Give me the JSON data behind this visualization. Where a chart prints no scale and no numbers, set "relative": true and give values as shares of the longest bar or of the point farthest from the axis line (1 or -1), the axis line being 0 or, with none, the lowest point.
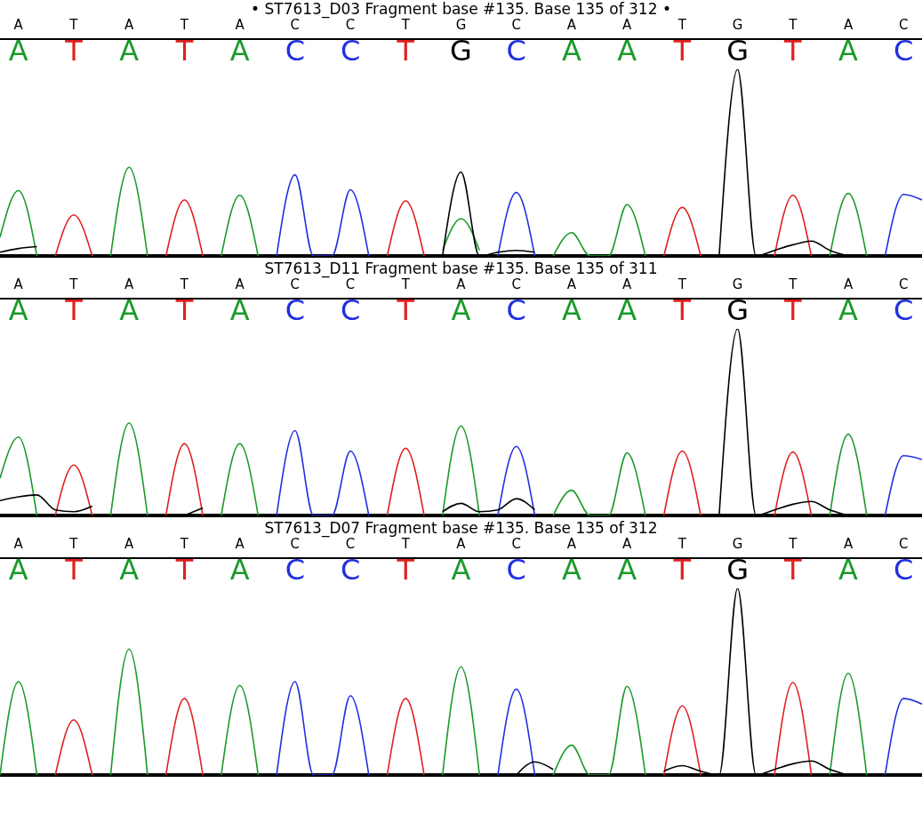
{
  "chart_data": [
    {
      "type": "line",
      "title": "• ST7613_D03 Fragment base #135. Base 135 of 312 •",
      "relative": true,
      "categories": [
        null,
        "A",
        null,
        null,
        "T",
        null,
        null,
        "A",
        null,
        null,
        "T",
        null,
        null,
        "A",
        null,
        null,
        "C",
        null,
        null,
        "C",
        null,
        null,
        "T",
        null,
        null,
        "G",
        null,
        null,
        "C",
        null,
        null,
        "A",
        null,
        null,
        "A",
        null,
        null,
        "T",
        null,
        null,
        "G",
        null,
        null,
        "T",
        null,
        null,
        "A",
        null,
        null,
        "C",
        null
      ],
      "series": [
        {
          "color": "#1a9a2a",
          "values": [
            0.1,
            0.35,
            0,
            null,
            null,
            null,
            0,
            0.475,
            0,
            null,
            null,
            null,
            0,
            0.325,
            0,
            null,
            null,
            null,
            null,
            null,
            null,
            null,
            null,
            null,
            0.03,
            0.2,
            0.03,
            null,
            null,
            null,
            0,
            0.125,
            0,
            0,
            0.275,
            0,
            null,
            null,
            null,
            null,
            null,
            null,
            null,
            null,
            null,
            0,
            0.335,
            0,
            null,
            null,
            null
          ]
        },
        {
          "color": "#e02020",
          "values": [
            null,
            null,
            null,
            0,
            0.22,
            0,
            null,
            null,
            null,
            0,
            0.3,
            0,
            null,
            null,
            null,
            null,
            null,
            null,
            null,
            null,
            null,
            0,
            0.295,
            0,
            null,
            null,
            null,
            null,
            null,
            null,
            null,
            null,
            null,
            null,
            null,
            null,
            0,
            0.26,
            0,
            null,
            null,
            null,
            0,
            0.325,
            0,
            null,
            null,
            null,
            null,
            null,
            null
          ]
        },
        {
          "color": "#2030e0",
          "values": [
            null,
            null,
            null,
            null,
            null,
            null,
            null,
            null,
            null,
            null,
            null,
            null,
            null,
            null,
            null,
            0,
            0.435,
            0,
            0,
            0.355,
            0,
            null,
            null,
            null,
            null,
            null,
            null,
            0,
            0.34,
            0,
            null,
            null,
            null,
            null,
            null,
            null,
            null,
            null,
            null,
            null,
            null,
            null,
            null,
            null,
            null,
            null,
            null,
            null,
            0,
            0.33,
            0.3
          ]
        },
        {
          "color": "#000000",
          "values": [
            0.02,
            0.04,
            0.05,
            null,
            null,
            null,
            null,
            null,
            null,
            null,
            null,
            null,
            null,
            null,
            null,
            null,
            null,
            null,
            null,
            null,
            null,
            null,
            null,
            null,
            0,
            0.45,
            0,
            0.02,
            0.03,
            0.02,
            null,
            null,
            null,
            null,
            null,
            null,
            null,
            null,
            null,
            0,
            1,
            0,
            0.03,
            0.06,
            0.08,
            0.03,
            0,
            null,
            null,
            null,
            null
          ]
        }
      ]
    },
    {
      "type": "line",
      "title": "ST7613_D11 Fragment base #135. Base 135 of 311",
      "relative": true,
      "categories": [
        null,
        "A",
        null,
        null,
        "T",
        null,
        null,
        "A",
        null,
        null,
        "T",
        null,
        null,
        "A",
        null,
        null,
        "C",
        null,
        null,
        "C",
        null,
        null,
        "T",
        null,
        null,
        "A",
        null,
        null,
        "C",
        null,
        null,
        "A",
        null,
        null,
        "A",
        null,
        null,
        "T",
        null,
        null,
        "G",
        null,
        null,
        "T",
        null,
        null,
        "A",
        null,
        null,
        "C",
        null
      ],
      "series": [
        {
          "color": "#1a9a2a",
          "values": [
            0.2,
            0.42,
            0,
            null,
            null,
            null,
            0,
            0.495,
            0,
            null,
            null,
            null,
            0,
            0.385,
            0,
            null,
            null,
            null,
            null,
            null,
            null,
            null,
            null,
            null,
            0,
            0.48,
            0,
            null,
            null,
            null,
            0,
            0.135,
            0,
            0,
            0.335,
            0,
            null,
            null,
            null,
            null,
            null,
            null,
            null,
            null,
            null,
            0,
            0.435,
            0,
            null,
            null,
            null
          ]
        },
        {
          "color": "#e02020",
          "values": [
            null,
            null,
            null,
            0,
            0.27,
            0,
            null,
            null,
            null,
            0,
            0.385,
            0,
            null,
            null,
            null,
            null,
            null,
            null,
            null,
            null,
            null,
            0,
            0.36,
            0,
            null,
            null,
            null,
            null,
            null,
            null,
            null,
            null,
            null,
            null,
            null,
            null,
            0,
            0.345,
            0,
            null,
            null,
            null,
            0,
            0.34,
            0,
            null,
            null,
            null,
            null,
            null,
            null
          ]
        },
        {
          "color": "#2030e0",
          "values": [
            null,
            null,
            null,
            null,
            null,
            null,
            null,
            null,
            null,
            null,
            null,
            null,
            null,
            null,
            null,
            0,
            0.455,
            0,
            0,
            0.345,
            0,
            null,
            null,
            null,
            null,
            null,
            null,
            0,
            0.37,
            0,
            null,
            null,
            null,
            null,
            null,
            null,
            null,
            null,
            null,
            null,
            null,
            null,
            null,
            null,
            null,
            null,
            null,
            null,
            0,
            0.32,
            0.3
          ]
        },
        {
          "color": "#000000",
          "values": [
            0.08,
            0.1,
            0.11,
            0.03,
            0.02,
            0.05,
            null,
            null,
            null,
            null,
            0,
            0.04,
            null,
            null,
            null,
            null,
            null,
            null,
            null,
            null,
            null,
            null,
            null,
            null,
            0.02,
            0.065,
            0.02,
            0.03,
            0.09,
            0.03,
            null,
            null,
            null,
            null,
            null,
            null,
            null,
            null,
            null,
            0,
            1,
            0,
            0.03,
            0.06,
            0.075,
            0.03,
            0,
            null,
            null,
            null,
            null
          ]
        }
      ]
    },
    {
      "type": "line",
      "title": "ST7613_D07 Fragment base #135. Base 135 of 312",
      "relative": true,
      "categories": [
        null,
        "A",
        null,
        null,
        "T",
        null,
        null,
        "A",
        null,
        null,
        "T",
        null,
        null,
        "A",
        null,
        null,
        "C",
        null,
        null,
        "C",
        null,
        null,
        "T",
        null,
        null,
        "A",
        null,
        null,
        "C",
        null,
        null,
        "A",
        null,
        null,
        "A",
        null,
        null,
        "T",
        null,
        null,
        "G",
        null,
        null,
        "T",
        null,
        null,
        "A",
        null,
        null,
        "C",
        null
      ],
      "series": [
        {
          "color": "#1a9a2a",
          "values": [
            0,
            0.5,
            0,
            null,
            null,
            null,
            0,
            0.675,
            0,
            null,
            null,
            null,
            0,
            0.48,
            0,
            null,
            null,
            null,
            null,
            null,
            null,
            null,
            null,
            null,
            0,
            0.58,
            0,
            null,
            null,
            null,
            0,
            0.16,
            0,
            0,
            0.475,
            0,
            null,
            null,
            null,
            null,
            null,
            null,
            null,
            null,
            null,
            0,
            0.545,
            0,
            null,
            null,
            null
          ]
        },
        {
          "color": "#e02020",
          "values": [
            null,
            null,
            null,
            0,
            0.295,
            0,
            null,
            null,
            null,
            0,
            0.41,
            0,
            null,
            null,
            null,
            null,
            null,
            null,
            null,
            null,
            null,
            0,
            0.41,
            0,
            null,
            null,
            null,
            null,
            null,
            null,
            null,
            null,
            null,
            null,
            null,
            null,
            0,
            0.37,
            0,
            null,
            null,
            null,
            0,
            0.495,
            0,
            null,
            null,
            null,
            null,
            null,
            null
          ]
        },
        {
          "color": "#2030e0",
          "values": [
            null,
            null,
            null,
            null,
            null,
            null,
            null,
            null,
            null,
            null,
            null,
            null,
            null,
            null,
            null,
            0,
            0.5,
            0,
            0,
            0.425,
            0,
            null,
            null,
            null,
            null,
            null,
            null,
            0,
            0.46,
            0,
            null,
            null,
            null,
            null,
            null,
            null,
            null,
            null,
            null,
            null,
            null,
            null,
            null,
            null,
            null,
            null,
            null,
            null,
            0,
            0.41,
            0.38
          ]
        },
        {
          "color": "#000000",
          "values": [
            null,
            null,
            null,
            null,
            null,
            null,
            null,
            null,
            null,
            null,
            null,
            null,
            null,
            null,
            null,
            null,
            null,
            null,
            null,
            null,
            null,
            null,
            null,
            null,
            null,
            null,
            null,
            null,
            0,
            0.07,
            0.03,
            null,
            null,
            null,
            null,
            null,
            0.02,
            0.05,
            0.02,
            0,
            1,
            0,
            0.03,
            0.06,
            0.075,
            0.03,
            0,
            null,
            null,
            null,
            null
          ]
        }
      ]
    }
  ]
}
